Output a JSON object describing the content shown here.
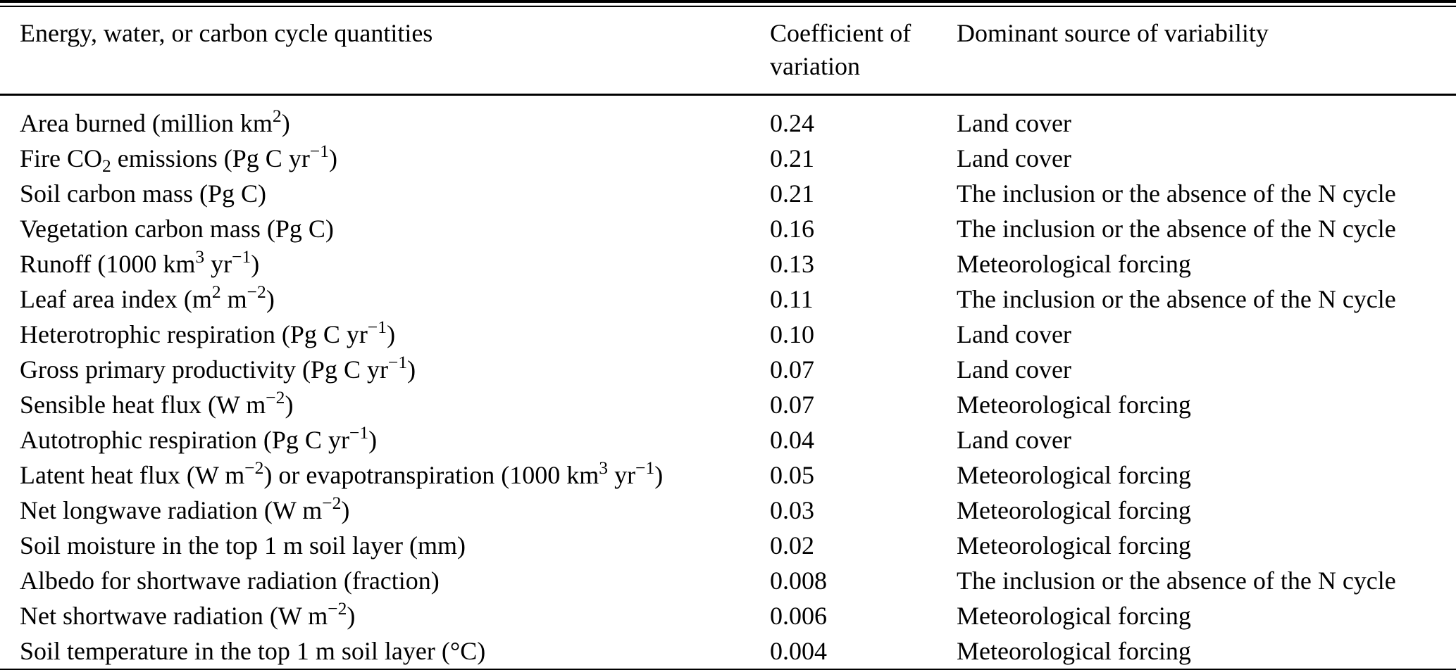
{
  "colors": {
    "text": "#000000",
    "background": "#ffffff",
    "rule": "#000000"
  },
  "table": {
    "header": {
      "col1": "Energy, water, or carbon cycle quantities",
      "col2": "Coefficient of variation",
      "col3": "Dominant source of variability"
    },
    "rows": [
      {
        "quantity": "Area burned (million km^{2})",
        "cov": "0.24",
        "source": "Land cover"
      },
      {
        "quantity": "Fire CO_{2} emissions (Pg C yr^{−1})",
        "cov": "0.21",
        "source": "Land cover"
      },
      {
        "quantity": "Soil carbon mass (Pg C)",
        "cov": "0.21",
        "source": "The inclusion or the absence of the N cycle"
      },
      {
        "quantity": "Vegetation carbon mass (Pg C)",
        "cov": "0.16",
        "source": "The inclusion or the absence of the N cycle"
      },
      {
        "quantity": "Runoff (1000 km^{3} yr^{−1})",
        "cov": "0.13",
        "source": "Meteorological forcing"
      },
      {
        "quantity": "Leaf area index (m^{2} m^{−2})",
        "cov": "0.11",
        "source": "The inclusion or the absence of the N cycle"
      },
      {
        "quantity": "Heterotrophic respiration (Pg C yr^{−1})",
        "cov": "0.10",
        "source": "Land cover"
      },
      {
        "quantity": "Gross primary productivity (Pg C yr^{−1})",
        "cov": "0.07",
        "source": "Land cover"
      },
      {
        "quantity": "Sensible heat flux (W m^{−2})",
        "cov": "0.07",
        "source": "Meteorological forcing"
      },
      {
        "quantity": "Autotrophic respiration (Pg C yr^{−1})",
        "cov": "0.04",
        "source": "Land cover"
      },
      {
        "quantity": "Latent heat flux (W m^{−2}) or evapotranspiration (1000 km^{3} yr^{−1})",
        "cov": "0.05",
        "source": "Meteorological forcing"
      },
      {
        "quantity": "Net longwave radiation (W m^{−2})",
        "cov": "0.03",
        "source": "Meteorological forcing"
      },
      {
        "quantity": "Soil moisture in the top 1 m soil layer (mm)",
        "cov": "0.02",
        "source": "Meteorological forcing"
      },
      {
        "quantity": "Albedo for shortwave radiation (fraction)",
        "cov": "0.008",
        "source": "The inclusion or the absence of the N cycle"
      },
      {
        "quantity": "Net shortwave radiation (W m^{−2})",
        "cov": "0.006",
        "source": "Meteorological forcing"
      },
      {
        "quantity": "Soil temperature in the top 1 m soil layer (°C)",
        "cov": "0.004",
        "source": "Meteorological forcing"
      }
    ]
  }
}
